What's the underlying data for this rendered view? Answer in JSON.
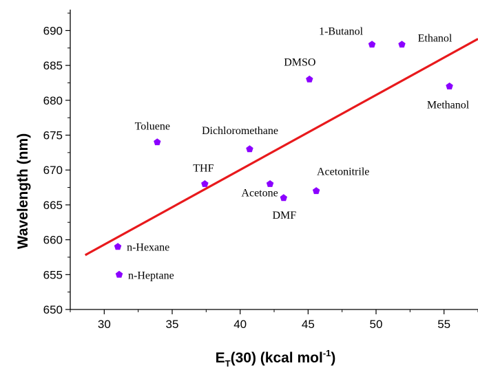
{
  "chart_data": {
    "type": "scatter",
    "xlabel": {
      "main": "E",
      "sub": "T",
      "rest": "(30) (kcal mol",
      "sup": "-1",
      "close": ")"
    },
    "ylabel": "Wavelength (nm)",
    "xlim": [
      27.5,
      57.5
    ],
    "ylim": [
      650,
      693
    ],
    "x_ticks": [
      30,
      35,
      40,
      45,
      50,
      55
    ],
    "y_ticks": [
      650,
      655,
      660,
      665,
      670,
      675,
      680,
      685,
      690
    ],
    "grid": false,
    "marker_color": "#8B00FF",
    "fit_line_color": "#E8191C",
    "points": [
      {
        "label": "n-Hexane",
        "x": 31.0,
        "y": 659
      },
      {
        "label": "n-Heptane",
        "x": 31.1,
        "y": 655
      },
      {
        "label": "Toluene",
        "x": 33.9,
        "y": 674
      },
      {
        "label": "THF",
        "x": 37.4,
        "y": 668
      },
      {
        "label": "Dichloromethane",
        "x": 40.7,
        "y": 673
      },
      {
        "label": "Acetone",
        "x": 42.2,
        "y": 668
      },
      {
        "label": "DMF",
        "x": 43.2,
        "y": 666
      },
      {
        "label": "Acetonitrile",
        "x": 45.6,
        "y": 667
      },
      {
        "label": "DMSO",
        "x": 45.1,
        "y": 683
      },
      {
        "label": "1-Butanol",
        "x": 49.7,
        "y": 688
      },
      {
        "label": "Ethanol",
        "x": 51.9,
        "y": 688
      },
      {
        "label": "Methanol",
        "x": 55.4,
        "y": 682
      }
    ],
    "fit_line": {
      "x": [
        28.6,
        57.5
      ],
      "y": [
        657.8,
        688.8
      ]
    }
  }
}
